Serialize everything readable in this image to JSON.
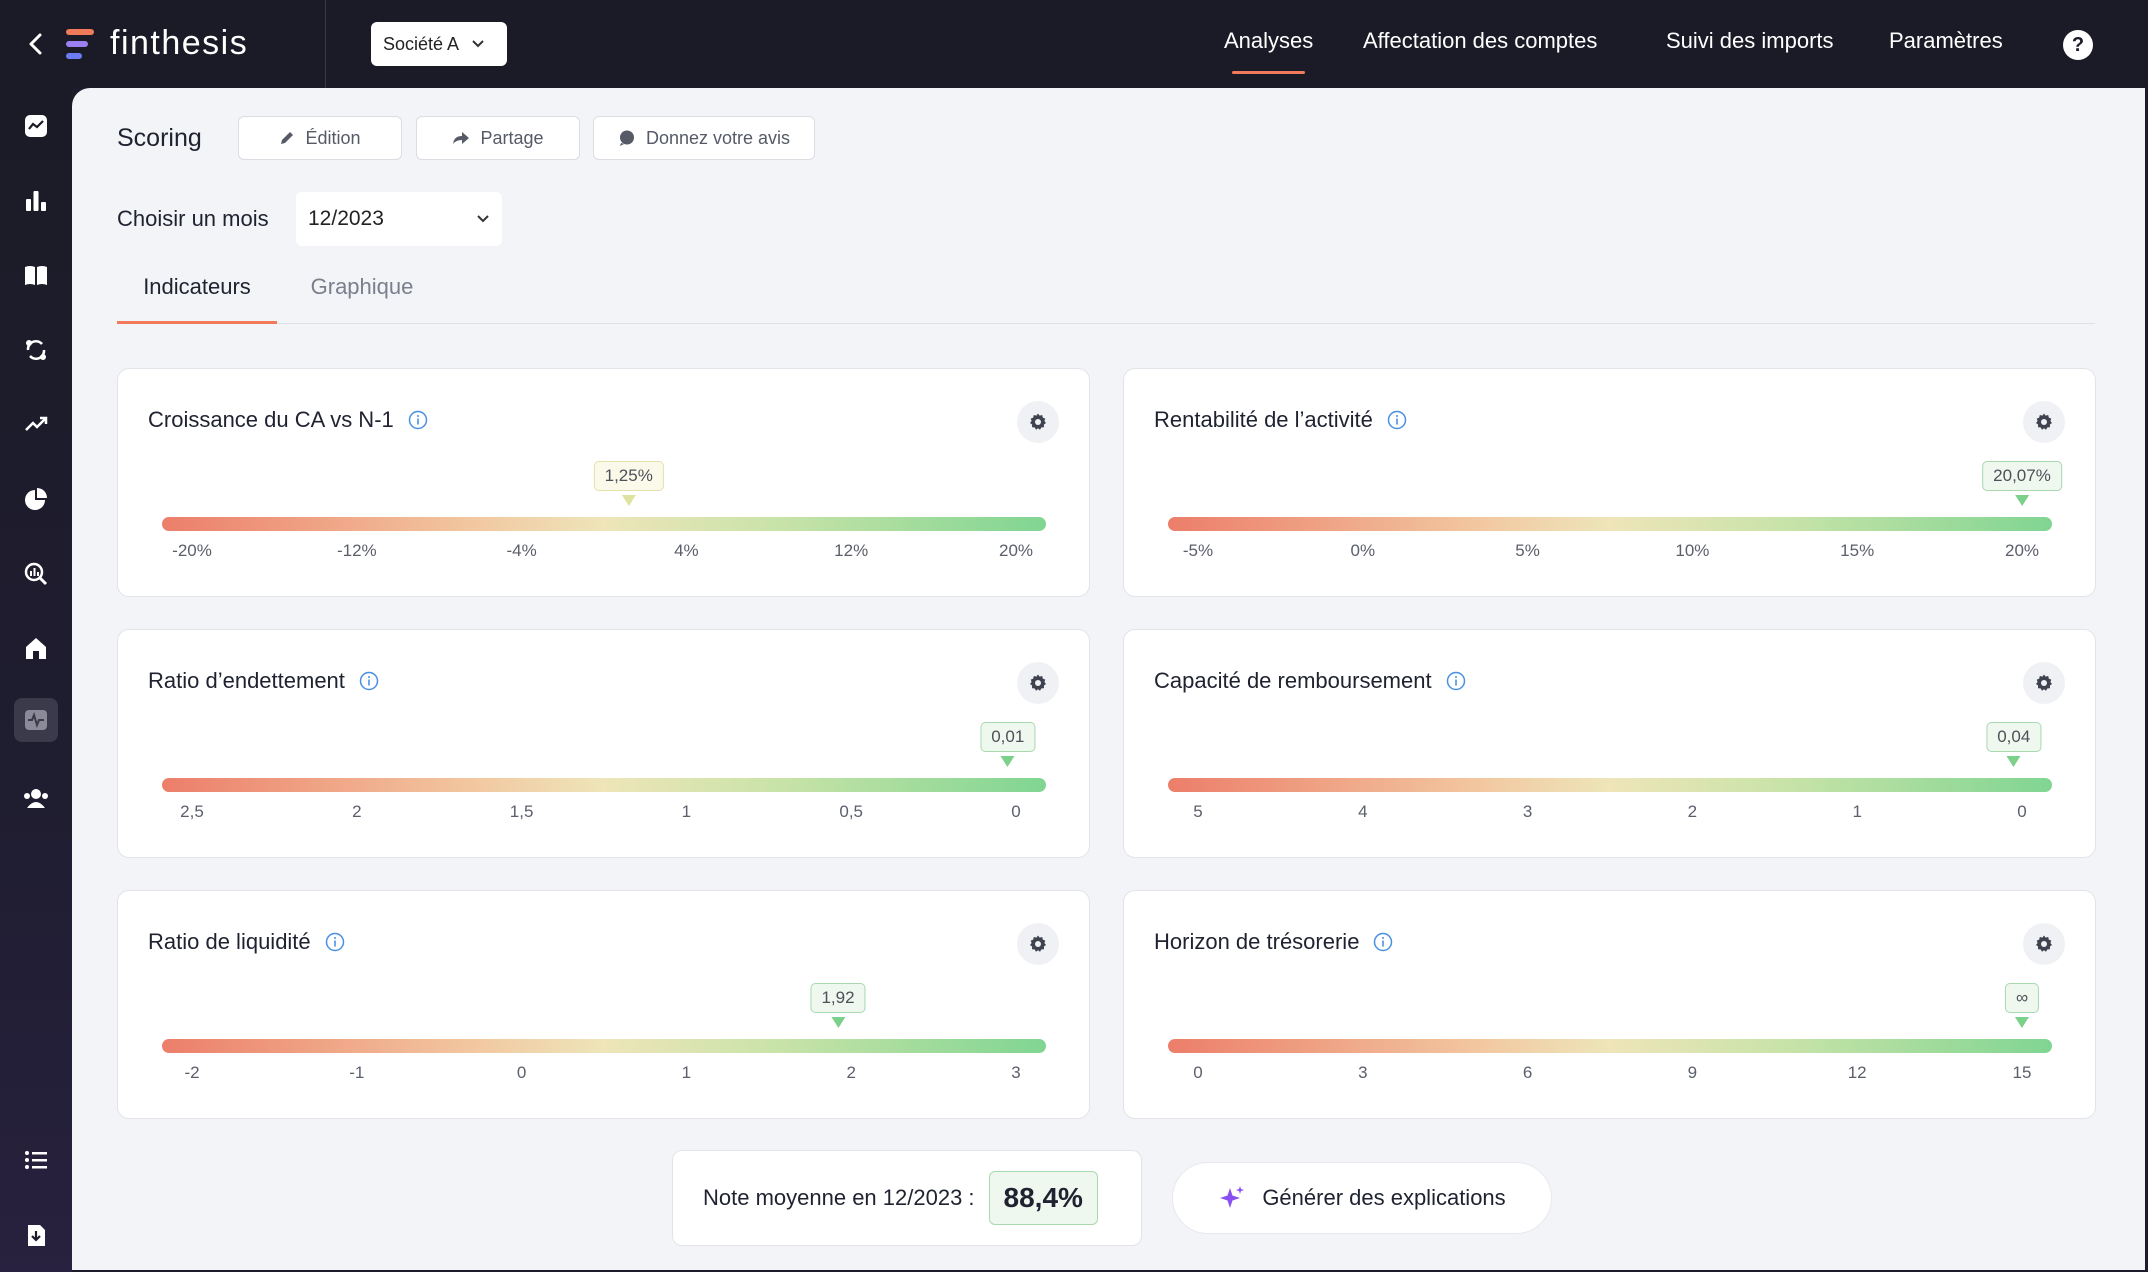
{
  "app": {
    "logo_text": "finthesis"
  },
  "header": {
    "company": "Société A",
    "nav": [
      {
        "label": "Analyses"
      },
      {
        "label": "Affectation des comptes"
      },
      {
        "label": "Suivi des imports"
      },
      {
        "label": "Paramètres"
      }
    ],
    "help_label": "?"
  },
  "sidebar": {
    "items": [
      "chart-line-icon",
      "bar-chart-icon",
      "book-icon",
      "sync-icon",
      "trend-up-icon",
      "pie-chart-icon",
      "search-chart-icon",
      "home-icon",
      "pulse-icon",
      "users-icon",
      "list-icon",
      "download-icon"
    ]
  },
  "page": {
    "title": "Scoring",
    "edit_label": "Édition",
    "share_label": "Partage",
    "feedback_label": "Donnez votre avis",
    "month_label": "Choisir un mois",
    "month_value": "12/2023",
    "tabs": [
      {
        "label": "Indicateurs"
      },
      {
        "label": "Graphique"
      }
    ]
  },
  "indicators": [
    {
      "title": "Croissance du CA vs N-1",
      "ticks": [
        "-20%",
        "-12%",
        "-4%",
        "4%",
        "12%",
        "20%"
      ],
      "value_label": "1,25%",
      "position": 0.53,
      "tone": "yellow"
    },
    {
      "title": "Rentabilité de l’activité",
      "ticks": [
        "-5%",
        "0%",
        "5%",
        "10%",
        "15%",
        "20%"
      ],
      "value_label": "20,07%",
      "position": 1.0,
      "tone": "green"
    },
    {
      "title": "Ratio d’endettement",
      "ticks": [
        "2,5",
        "2",
        "1,5",
        "1",
        "0,5",
        "0"
      ],
      "value_label": "0,01",
      "position": 0.99,
      "tone": "green"
    },
    {
      "title": "Capacité de remboursement",
      "ticks": [
        "5",
        "4",
        "3",
        "2",
        "1",
        "0"
      ],
      "value_label": "0,04",
      "position": 0.99,
      "tone": "green"
    },
    {
      "title": "Ratio de liquidité",
      "ticks": [
        "-2",
        "-1",
        "0",
        "1",
        "2",
        "3"
      ],
      "value_label": "1,92",
      "position": 0.784,
      "tone": "green"
    },
    {
      "title": "Horizon de trésorerie",
      "ticks": [
        "0",
        "3",
        "6",
        "9",
        "12",
        "15"
      ],
      "value_label": "∞",
      "position": 1.0,
      "tone": "green"
    }
  ],
  "summary": {
    "avg_label": "Note moyenne en 12/2023 :",
    "avg_value": "88,4%",
    "generate_label": "Générer des explications"
  },
  "colors": {
    "accent": "#f07a5a",
    "dark": "#1b1b27",
    "good": "#80d592",
    "bad": "#ec7e6a"
  }
}
